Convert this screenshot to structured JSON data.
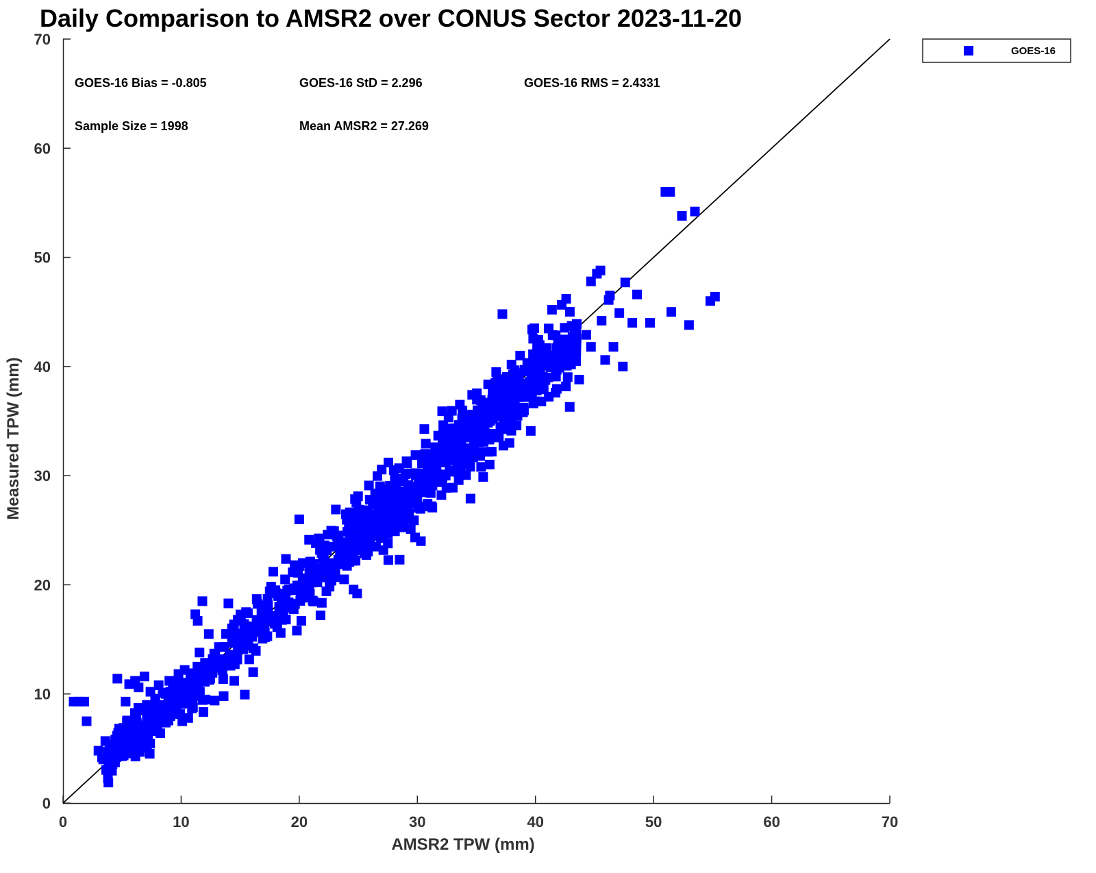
{
  "chart_data": {
    "type": "scatter",
    "title": "Daily Comparison to AMSR2 over CONUS Sector 2023-11-20",
    "xlabel": "AMSR2 TPW (mm)",
    "ylabel": "Measured TPW (mm)",
    "xlim": [
      0,
      70
    ],
    "ylim": [
      0,
      70
    ],
    "xticks": [
      "0",
      "10",
      "20",
      "30",
      "40",
      "50",
      "60",
      "70"
    ],
    "yticks": [
      "0",
      "10",
      "20",
      "30",
      "40",
      "50",
      "60",
      "70"
    ],
    "reference_line": "1:1",
    "legend": {
      "position": "top-right",
      "entries": [
        "GOES-16"
      ]
    },
    "marker_color": "#0000ff",
    "stats": {
      "bias": "GOES-16 Bias = -0.805",
      "std": "GOES-16 StD = 2.296",
      "rms": "GOES-16 RMS = 2.4331",
      "sample": "Sample Size = 1998",
      "mean": "Mean AMSR2 = 27.269"
    },
    "series": [
      {
        "name": "GOES-16",
        "points": [
          [
            0.9,
            9.3
          ],
          [
            1.4,
            9.3
          ],
          [
            1.8,
            9.3
          ],
          [
            2.0,
            7.5
          ],
          [
            3.0,
            4.8
          ],
          [
            3.3,
            4.2
          ],
          [
            3.6,
            4.6
          ],
          [
            4.0,
            5.2
          ],
          [
            4.2,
            4.0
          ],
          [
            4.5,
            4.9
          ],
          [
            4.8,
            5.5
          ],
          [
            5.0,
            4.3
          ],
          [
            5.3,
            6.2
          ],
          [
            5.5,
            5.0
          ],
          [
            5.7,
            7.0
          ],
          [
            5.9,
            6.5
          ],
          [
            6.2,
            7.8
          ],
          [
            6.5,
            8.5
          ],
          [
            4.6,
            11.4
          ],
          [
            5.3,
            9.3
          ],
          [
            5.6,
            10.9
          ],
          [
            6.1,
            11.2
          ],
          [
            6.4,
            10.6
          ],
          [
            6.9,
            11.6
          ],
          [
            7.1,
            9.0
          ],
          [
            7.4,
            10.2
          ],
          [
            7.8,
            9.5
          ],
          [
            8.1,
            10.8
          ],
          [
            8.4,
            9.0
          ],
          [
            8.7,
            10.0
          ],
          [
            9.0,
            11.2
          ],
          [
            9.3,
            10.3
          ],
          [
            9.6,
            11.0
          ],
          [
            10.0,
            10.4
          ],
          [
            10.3,
            12.2
          ],
          [
            10.6,
            11.0
          ],
          [
            10.1,
            7.5
          ],
          [
            10.6,
            7.8
          ],
          [
            11.0,
            11.9
          ],
          [
            11.2,
            17.3
          ],
          [
            11.4,
            16.7
          ],
          [
            11.8,
            18.5
          ],
          [
            12.4,
            12.5
          ],
          [
            12.8,
            13.7
          ],
          [
            13.2,
            14.3
          ],
          [
            13.5,
            12.2
          ],
          [
            13.6,
            9.8
          ],
          [
            13.8,
            15.5
          ],
          [
            14.0,
            18.3
          ],
          [
            14.3,
            16.0
          ],
          [
            14.5,
            11.2
          ],
          [
            14.8,
            16.8
          ],
          [
            15.0,
            15.3
          ],
          [
            15.5,
            17.5
          ],
          [
            15.8,
            16.2
          ],
          [
            16.1,
            12.0
          ],
          [
            16.4,
            18.7
          ],
          [
            16.8,
            17.4
          ],
          [
            17.1,
            15.2
          ],
          [
            17.5,
            19.4
          ],
          [
            17.8,
            21.2
          ],
          [
            18.2,
            17.1
          ],
          [
            18.5,
            18.8
          ],
          [
            18.8,
            20.5
          ],
          [
            19.2,
            17.9
          ],
          [
            19.6,
            21.8
          ],
          [
            19.8,
            15.8
          ],
          [
            20.0,
            26.0
          ],
          [
            20.3,
            22.0
          ],
          [
            20.6,
            19.5
          ],
          [
            21.0,
            20.2
          ],
          [
            21.4,
            23.8
          ],
          [
            21.8,
            17.2
          ],
          [
            22.0,
            22.5
          ],
          [
            22.4,
            24.6
          ],
          [
            22.8,
            21.1
          ],
          [
            23.1,
            26.9
          ],
          [
            23.5,
            23.1
          ],
          [
            23.8,
            20.5
          ],
          [
            24.2,
            25.6
          ],
          [
            24.5,
            22.2
          ],
          [
            24.9,
            19.2
          ],
          [
            25.2,
            26.4
          ],
          [
            25.6,
            24.0
          ],
          [
            25.9,
            29.1
          ],
          [
            26.2,
            25.2
          ],
          [
            26.5,
            23.5
          ],
          [
            26.8,
            27.0
          ],
          [
            27.1,
            24.6
          ],
          [
            27.4,
            28.4
          ],
          [
            27.7,
            25.9
          ],
          [
            28.0,
            30.5
          ],
          [
            28.2,
            26.8
          ],
          [
            28.5,
            22.3
          ],
          [
            28.8,
            28.1
          ],
          [
            29.1,
            26.0
          ],
          [
            29.4,
            30.2
          ],
          [
            29.7,
            27.4
          ],
          [
            30.0,
            29.0
          ],
          [
            30.3,
            24.0
          ],
          [
            30.6,
            28.5
          ],
          [
            30.9,
            30.9
          ],
          [
            31.2,
            27.2
          ],
          [
            31.5,
            31.8
          ],
          [
            31.8,
            29.4
          ],
          [
            32.1,
            35.9
          ],
          [
            32.4,
            30.0
          ],
          [
            32.7,
            33.2
          ],
          [
            33.0,
            28.9
          ],
          [
            33.3,
            32.4
          ],
          [
            33.6,
            36.5
          ],
          [
            33.9,
            31.0
          ],
          [
            34.2,
            33.8
          ],
          [
            34.5,
            27.9
          ],
          [
            34.8,
            32.9
          ],
          [
            35.1,
            35.1
          ],
          [
            35.4,
            30.8
          ],
          [
            35.7,
            34.0
          ],
          [
            36.0,
            36.7
          ],
          [
            36.3,
            32.2
          ],
          [
            36.6,
            38.5
          ],
          [
            36.9,
            33.5
          ],
          [
            37.2,
            44.8
          ],
          [
            37.5,
            35.9
          ],
          [
            37.8,
            33.0
          ],
          [
            38.1,
            37.1
          ],
          [
            38.4,
            34.6
          ],
          [
            38.7,
            41.0
          ],
          [
            39.0,
            36.2
          ],
          [
            39.3,
            38.4
          ],
          [
            39.6,
            34.1
          ],
          [
            39.9,
            43.5
          ],
          [
            40.2,
            38.9
          ],
          [
            40.5,
            36.8
          ],
          [
            40.8,
            41.3
          ],
          [
            41.1,
            39.0
          ],
          [
            41.4,
            45.2
          ],
          [
            41.7,
            37.6
          ],
          [
            42.0,
            42.4
          ],
          [
            42.3,
            40.2
          ],
          [
            42.6,
            46.2
          ],
          [
            42.9,
            36.3
          ],
          [
            43.2,
            40.5
          ],
          [
            43.5,
            43.9
          ],
          [
            44.3,
            42.9
          ],
          [
            44.7,
            41.8
          ],
          [
            45.2,
            48.5
          ],
          [
            45.6,
            44.2
          ],
          [
            45.9,
            40.6
          ],
          [
            46.2,
            46.1
          ],
          [
            46.6,
            41.8
          ],
          [
            47.1,
            44.9
          ],
          [
            47.4,
            40.0
          ],
          [
            47.6,
            47.7
          ],
          [
            48.2,
            44.0
          ],
          [
            48.6,
            46.6
          ],
          [
            49.7,
            44.0
          ],
          [
            51.0,
            56.0
          ],
          [
            51.5,
            45.0
          ],
          [
            52.4,
            53.8
          ],
          [
            53.0,
            43.8
          ],
          [
            53.5,
            54.2
          ],
          [
            54.8,
            46.0
          ],
          [
            55.2,
            46.4
          ],
          [
            51.4,
            56.0
          ],
          [
            46.3,
            46.5
          ],
          [
            45.5,
            48.8
          ],
          [
            44.7,
            47.8
          ],
          [
            43.7,
            38.8
          ],
          [
            41.8,
            39.7
          ],
          [
            40.4,
            40.1
          ],
          [
            39.2,
            37.2
          ],
          [
            38.6,
            39.4
          ],
          [
            37.9,
            35.5
          ],
          [
            37.3,
            36.2
          ],
          [
            36.4,
            35.2
          ],
          [
            35.6,
            33.1
          ],
          [
            34.9,
            34.0
          ],
          [
            34.1,
            34.6
          ],
          [
            33.5,
            33.2
          ],
          [
            32.8,
            31.4
          ],
          [
            32.2,
            31.7
          ],
          [
            31.6,
            30.2
          ],
          [
            31.0,
            29.3
          ],
          [
            30.4,
            29.8
          ],
          [
            29.8,
            28.9
          ],
          [
            29.2,
            27.6
          ],
          [
            28.6,
            27.9
          ],
          [
            28.0,
            27.0
          ],
          [
            27.3,
            26.8
          ],
          [
            26.7,
            25.4
          ],
          [
            26.1,
            24.7
          ],
          [
            25.4,
            24.5
          ],
          [
            24.7,
            23.6
          ],
          [
            24.0,
            23.9
          ],
          [
            23.3,
            22.3
          ],
          [
            22.6,
            22.0
          ],
          [
            21.9,
            21.5
          ],
          [
            21.2,
            20.6
          ],
          [
            20.5,
            19.7
          ],
          [
            19.8,
            19.5
          ],
          [
            19.1,
            18.4
          ],
          [
            18.3,
            18.0
          ],
          [
            17.6,
            17.1
          ],
          [
            16.9,
            16.4
          ],
          [
            16.2,
            15.7
          ],
          [
            15.5,
            15.2
          ],
          [
            14.8,
            14.4
          ],
          [
            14.1,
            13.6
          ],
          [
            13.4,
            13.1
          ],
          [
            12.7,
            12.4
          ],
          [
            12.0,
            11.7
          ],
          [
            11.3,
            11.0
          ],
          [
            10.6,
            10.4
          ],
          [
            9.9,
            9.8
          ],
          [
            9.2,
            9.2
          ],
          [
            8.5,
            8.6
          ],
          [
            7.8,
            8.2
          ],
          [
            7.1,
            7.8
          ],
          [
            6.4,
            6.9
          ],
          [
            5.8,
            6.1
          ],
          [
            5.2,
            5.6
          ],
          [
            4.6,
            5.1
          ],
          [
            4.1,
            4.7
          ],
          [
            3.8,
            4.3
          ],
          [
            3.4,
            4.0
          ]
        ]
      }
    ]
  }
}
